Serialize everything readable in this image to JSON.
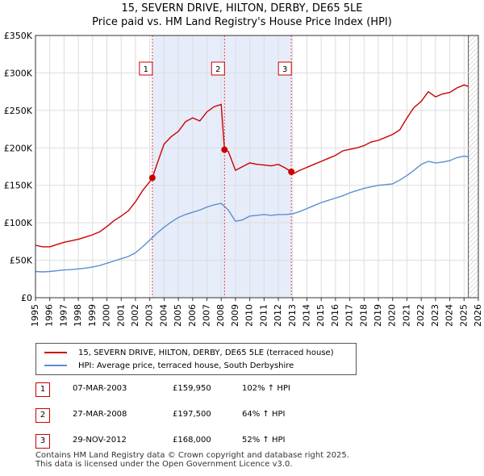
{
  "title_line1": "15, SEVERN DRIVE, HILTON, DERBY, DE65 5LE",
  "title_line2": "Price paid vs. HM Land Registry's House Price Index (HPI)",
  "colors": {
    "price": "#cc0000",
    "hpi": "#5b8fcf",
    "shade": "#e6ecfa",
    "grid": "#dddddd",
    "marker_border": "#cc0000"
  },
  "chart_data": {
    "type": "line",
    "title": "Price paid vs. HM Land Registry's House Price Index (HPI)",
    "xlabel": "",
    "ylabel": "",
    "xlim": [
      1995,
      2026
    ],
    "ylim": [
      0,
      350000
    ],
    "x_ticks": [
      "1995",
      "1996",
      "1997",
      "1998",
      "1999",
      "2000",
      "2001",
      "2002",
      "2003",
      "2004",
      "2005",
      "2006",
      "2007",
      "2008",
      "2009",
      "2010",
      "2011",
      "2012",
      "2013",
      "2014",
      "2015",
      "2016",
      "2017",
      "2018",
      "2019",
      "2020",
      "2021",
      "2022",
      "2023",
      "2024",
      "2025",
      "2026"
    ],
    "y_ticks": [
      {
        "value": 0,
        "label": "£0"
      },
      {
        "value": 50000,
        "label": "£50K"
      },
      {
        "value": 100000,
        "label": "£100K"
      },
      {
        "value": 150000,
        "label": "£150K"
      },
      {
        "value": 200000,
        "label": "£200K"
      },
      {
        "value": 250000,
        "label": "£250K"
      },
      {
        "value": 300000,
        "label": "£300K"
      },
      {
        "value": 350000,
        "label": "£350K"
      }
    ],
    "series": [
      {
        "name": "15, SEVERN DRIVE, HILTON, DERBY, DE65 5LE (terraced house)",
        "color": "#cc0000",
        "x": [
          1995.0,
          1995.5,
          1996.0,
          1996.5,
          1997.0,
          1997.5,
          1998.0,
          1998.5,
          1999.0,
          1999.5,
          2000.0,
          2000.5,
          2001.0,
          2001.5,
          2002.0,
          2002.5,
          2003.0,
          2003.18,
          2003.5,
          2004.0,
          2004.5,
          2005.0,
          2005.5,
          2006.0,
          2006.5,
          2007.0,
          2007.5,
          2008.0,
          2008.23,
          2008.5,
          2009.0,
          2009.5,
          2010.0,
          2010.5,
          2011.0,
          2011.5,
          2012.0,
          2012.5,
          2012.91,
          2013.0,
          2013.5,
          2014.0,
          2014.5,
          2015.0,
          2015.5,
          2016.0,
          2016.5,
          2017.0,
          2017.5,
          2018.0,
          2018.5,
          2019.0,
          2019.5,
          2020.0,
          2020.5,
          2021.0,
          2021.5,
          2022.0,
          2022.5,
          2023.0,
          2023.5,
          2024.0,
          2024.5,
          2025.0,
          2025.3
        ],
        "y": [
          70000,
          68000,
          68000,
          71000,
          74000,
          76000,
          78000,
          81000,
          84000,
          88000,
          95000,
          103000,
          109000,
          116000,
          128000,
          143000,
          155000,
          159950,
          178000,
          205000,
          215000,
          222000,
          235000,
          240000,
          236000,
          248000,
          255000,
          258000,
          197500,
          195000,
          170000,
          175000,
          180000,
          178000,
          177000,
          176000,
          178000,
          173000,
          168000,
          165000,
          170000,
          174000,
          178000,
          182000,
          186000,
          190000,
          196000,
          198000,
          200000,
          203000,
          208000,
          210000,
          214000,
          218000,
          224000,
          240000,
          254000,
          262000,
          275000,
          268000,
          272000,
          274000,
          280000,
          284000,
          282000
        ]
      },
      {
        "name": "HPI: Average price, terraced house, South Derbyshire",
        "color": "#5b8fcf",
        "x": [
          1995.0,
          1995.5,
          1996.0,
          1996.5,
          1997.0,
          1997.5,
          1998.0,
          1998.5,
          1999.0,
          1999.5,
          2000.0,
          2000.5,
          2001.0,
          2001.5,
          2002.0,
          2002.5,
          2003.0,
          2003.5,
          2004.0,
          2004.5,
          2005.0,
          2005.5,
          2006.0,
          2006.5,
          2007.0,
          2007.5,
          2008.0,
          2008.5,
          2009.0,
          2009.5,
          2010.0,
          2010.5,
          2011.0,
          2011.5,
          2012.0,
          2012.5,
          2013.0,
          2013.5,
          2014.0,
          2014.5,
          2015.0,
          2015.5,
          2016.0,
          2016.5,
          2017.0,
          2017.5,
          2018.0,
          2018.5,
          2019.0,
          2019.5,
          2020.0,
          2020.5,
          2021.0,
          2021.5,
          2022.0,
          2022.5,
          2023.0,
          2023.5,
          2024.0,
          2024.5,
          2025.0,
          2025.3
        ],
        "y": [
          35000,
          34500,
          35000,
          36000,
          37000,
          37500,
          38500,
          39500,
          41000,
          43000,
          46000,
          49000,
          52000,
          55000,
          60000,
          68000,
          77000,
          86000,
          94000,
          101000,
          107000,
          111000,
          114000,
          117000,
          121000,
          124000,
          126000,
          117000,
          102000,
          104000,
          109000,
          110000,
          111000,
          110000,
          111000,
          111000,
          112000,
          115000,
          119000,
          123000,
          127000,
          130000,
          133000,
          136000,
          140000,
          143000,
          146000,
          148000,
          150000,
          151000,
          152000,
          157000,
          163000,
          170000,
          178000,
          182000,
          180000,
          181000,
          183000,
          187000,
          189000,
          188000
        ]
      }
    ],
    "sales": [
      {
        "label": "1",
        "date": "07-MAR-2003",
        "x": 2003.18,
        "price": 159950,
        "price_text": "£159,950",
        "hpi_text": "102% ↑ HPI"
      },
      {
        "label": "2",
        "date": "27-MAR-2008",
        "x": 2008.23,
        "price": 197500,
        "price_text": "£197,500",
        "hpi_text": "64% ↑ HPI"
      },
      {
        "label": "3",
        "date": "29-NOV-2012",
        "x": 2012.91,
        "price": 168000,
        "price_text": "£168,000",
        "hpi_text": "52% ↑ HPI"
      }
    ],
    "forecast_start": 2025.3
  },
  "legend": {
    "price_label": "15, SEVERN DRIVE, HILTON, DERBY, DE65 5LE (terraced house)",
    "hpi_label": "HPI: Average price, terraced house, South Derbyshire"
  },
  "footer": {
    "line1": "Contains HM Land Registry data © Crown copyright and database right 2025.",
    "line2": "This data is licensed under the Open Government Licence v3.0."
  }
}
